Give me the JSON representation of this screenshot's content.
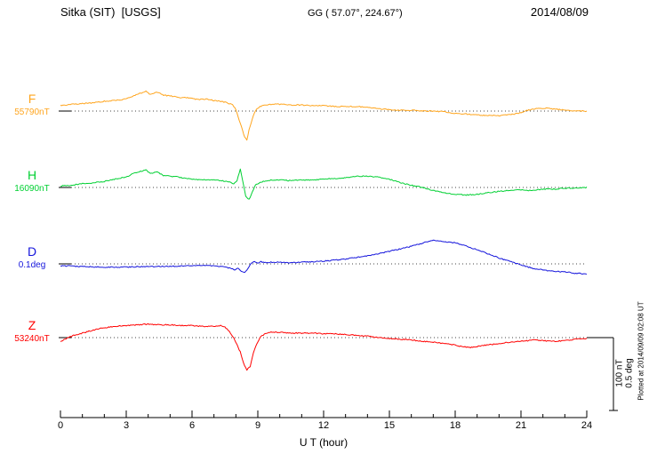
{
  "header": {
    "station": "Sitka (SIT)  [USGS]",
    "coordinates": "GG ( 57.07°, 224.67°)",
    "date": "2014/08/09"
  },
  "scale_bar": {
    "labels": [
      "100 nT",
      "0.5 deg"
    ]
  },
  "footer": {
    "plotted_at": "Plotted at 2014/09/09 02:08 UT"
  },
  "chart_data": {
    "type": "line",
    "title": "Sitka (SIT) [USGS] magnetogram, 2014/08/09",
    "xlabel": "U T (hour)",
    "x_range": [
      0,
      24
    ],
    "x_ticks": [
      0,
      3,
      6,
      9,
      12,
      15,
      18,
      21,
      24
    ],
    "scale_bar": {
      "amount_nT": 100,
      "amount_deg": 0.5
    },
    "series": [
      {
        "name": "F",
        "baseline_label": "55790nT",
        "unit": "nT",
        "color": "#ffa51e",
        "points": [
          [
            0,
            7
          ],
          [
            0.5,
            9
          ],
          [
            1,
            10
          ],
          [
            1.5,
            11
          ],
          [
            2,
            13
          ],
          [
            2.5,
            14
          ],
          [
            3,
            16
          ],
          [
            3.3,
            20
          ],
          [
            3.6,
            23
          ],
          [
            3.9,
            26
          ],
          [
            4.1,
            22
          ],
          [
            4.4,
            25
          ],
          [
            4.7,
            21
          ],
          [
            5,
            20
          ],
          [
            5.5,
            18
          ],
          [
            6,
            17
          ],
          [
            6.3,
            15
          ],
          [
            6.6,
            16
          ],
          [
            7,
            14
          ],
          [
            7.3,
            13
          ],
          [
            7.6,
            11
          ],
          [
            7.85,
            8
          ],
          [
            8,
            2
          ],
          [
            8.1,
            -8
          ],
          [
            8.25,
            -20
          ],
          [
            8.4,
            -35
          ],
          [
            8.5,
            -38
          ],
          [
            8.6,
            -25
          ],
          [
            8.75,
            -10
          ],
          [
            8.9,
            1
          ],
          [
            9.1,
            6
          ],
          [
            9.4,
            8
          ],
          [
            9.7,
            9
          ],
          [
            10,
            9
          ],
          [
            10.5,
            8
          ],
          [
            11,
            8
          ],
          [
            11.5,
            7
          ],
          [
            12,
            7
          ],
          [
            12.5,
            6
          ],
          [
            13,
            6
          ],
          [
            13.5,
            6
          ],
          [
            14,
            5
          ],
          [
            14.5,
            3
          ],
          [
            15,
            2
          ],
          [
            15.5,
            1
          ],
          [
            16,
            1
          ],
          [
            16.5,
            0
          ],
          [
            17,
            0
          ],
          [
            17.5,
            -1
          ],
          [
            18,
            -3
          ],
          [
            18.5,
            -4
          ],
          [
            19,
            -5
          ],
          [
            19.5,
            -6
          ],
          [
            20,
            -6
          ],
          [
            20.3,
            -5
          ],
          [
            20.7,
            -4
          ],
          [
            21,
            -2
          ],
          [
            21.3,
            1
          ],
          [
            21.7,
            3
          ],
          [
            22,
            4
          ],
          [
            22.4,
            3
          ],
          [
            22.8,
            2
          ],
          [
            23.2,
            1
          ],
          [
            23.6,
            0
          ],
          [
            24,
            0
          ]
        ]
      },
      {
        "name": "H",
        "baseline_label": "16090nT",
        "unit": "nT",
        "color": "#00d032",
        "points": [
          [
            0,
            2
          ],
          [
            0.5,
            3
          ],
          [
            1,
            5
          ],
          [
            1.5,
            6
          ],
          [
            2,
            8
          ],
          [
            2.5,
            11
          ],
          [
            3,
            14
          ],
          [
            3.3,
            18
          ],
          [
            3.6,
            21
          ],
          [
            3.9,
            23
          ],
          [
            4.1,
            18
          ],
          [
            4.4,
            21
          ],
          [
            4.7,
            16
          ],
          [
            5,
            15
          ],
          [
            5.3,
            14
          ],
          [
            5.7,
            12
          ],
          [
            6,
            11
          ],
          [
            6.5,
            10
          ],
          [
            7,
            10
          ],
          [
            7.3,
            9
          ],
          [
            7.6,
            8
          ],
          [
            7.9,
            5
          ],
          [
            8.05,
            9
          ],
          [
            8.2,
            24
          ],
          [
            8.3,
            10
          ],
          [
            8.45,
            -12
          ],
          [
            8.6,
            -16
          ],
          [
            8.75,
            -6
          ],
          [
            8.9,
            3
          ],
          [
            9.1,
            7
          ],
          [
            9.4,
            9
          ],
          [
            9.7,
            10
          ],
          [
            10,
            10
          ],
          [
            10.5,
            9
          ],
          [
            11,
            10
          ],
          [
            11.5,
            10
          ],
          [
            12,
            11
          ],
          [
            12.5,
            12
          ],
          [
            13,
            13
          ],
          [
            13.3,
            14
          ],
          [
            13.7,
            15
          ],
          [
            14,
            15
          ],
          [
            14.3,
            14
          ],
          [
            14.7,
            13
          ],
          [
            15,
            11
          ],
          [
            15.3,
            8
          ],
          [
            15.7,
            5
          ],
          [
            16,
            3
          ],
          [
            16.5,
            0
          ],
          [
            17,
            -4
          ],
          [
            17.5,
            -7
          ],
          [
            18,
            -9
          ],
          [
            18.5,
            -10
          ],
          [
            19,
            -9
          ],
          [
            19.5,
            -7
          ],
          [
            20,
            -5
          ],
          [
            20.5,
            -4
          ],
          [
            21,
            -3
          ],
          [
            21.4,
            -4
          ],
          [
            21.8,
            -3
          ],
          [
            22.2,
            -2
          ],
          [
            22.6,
            -2
          ],
          [
            23,
            -1
          ],
          [
            23.5,
            -1
          ],
          [
            24,
            0
          ]
        ]
      },
      {
        "name": "D",
        "baseline_label": "0.1deg",
        "unit": "deg",
        "color": "#1414dc",
        "points": [
          [
            0,
            -0.012
          ],
          [
            0.5,
            -0.015
          ],
          [
            1,
            -0.018
          ],
          [
            1.5,
            -0.02
          ],
          [
            2,
            -0.022
          ],
          [
            2.5,
            -0.022
          ],
          [
            3,
            -0.021
          ],
          [
            3.5,
            -0.019
          ],
          [
            4,
            -0.018
          ],
          [
            4.5,
            -0.017
          ],
          [
            5,
            -0.016
          ],
          [
            5.5,
            -0.014
          ],
          [
            6,
            -0.012
          ],
          [
            6.5,
            -0.01
          ],
          [
            7,
            -0.012
          ],
          [
            7.3,
            -0.016
          ],
          [
            7.6,
            -0.024
          ],
          [
            7.8,
            -0.032
          ],
          [
            7.95,
            -0.042
          ],
          [
            8.1,
            -0.03
          ],
          [
            8.25,
            -0.048
          ],
          [
            8.4,
            -0.056
          ],
          [
            8.55,
            -0.032
          ],
          [
            8.7,
            0.004
          ],
          [
            8.85,
            0.018
          ],
          [
            9,
            0.002
          ],
          [
            9.15,
            0.014
          ],
          [
            9.35,
            0.008
          ],
          [
            9.6,
            0.011
          ],
          [
            10,
            0.01
          ],
          [
            10.5,
            0.008
          ],
          [
            11,
            0.01
          ],
          [
            11.5,
            0.014
          ],
          [
            12,
            0.018
          ],
          [
            12.5,
            0.024
          ],
          [
            13,
            0.032
          ],
          [
            13.5,
            0.042
          ],
          [
            14,
            0.054
          ],
          [
            14.5,
            0.068
          ],
          [
            15,
            0.083
          ],
          [
            15.5,
            0.099
          ],
          [
            16,
            0.116
          ],
          [
            16.5,
            0.136
          ],
          [
            16.8,
            0.15
          ],
          [
            17,
            0.158
          ],
          [
            17.2,
            0.153
          ],
          [
            17.5,
            0.148
          ],
          [
            18,
            0.139
          ],
          [
            18.5,
            0.118
          ],
          [
            19,
            0.093
          ],
          [
            19.5,
            0.066
          ],
          [
            20,
            0.039
          ],
          [
            20.5,
            0.016
          ],
          [
            21,
            -0.006
          ],
          [
            21.5,
            -0.028
          ],
          [
            22,
            -0.041
          ],
          [
            22.5,
            -0.048
          ],
          [
            23,
            -0.054
          ],
          [
            23.5,
            -0.062
          ],
          [
            24,
            -0.068
          ]
        ]
      },
      {
        "name": "Z",
        "baseline_label": "53240nT",
        "unit": "nT",
        "color": "#ff0000",
        "points": [
          [
            0,
            -5
          ],
          [
            0.3,
            -1
          ],
          [
            0.6,
            3
          ],
          [
            1,
            6
          ],
          [
            1.5,
            10
          ],
          [
            2,
            13
          ],
          [
            2.5,
            15
          ],
          [
            3,
            16
          ],
          [
            3.5,
            17
          ],
          [
            4,
            18
          ],
          [
            4.5,
            17
          ],
          [
            5,
            17
          ],
          [
            5.5,
            16
          ],
          [
            6,
            16
          ],
          [
            6.5,
            15
          ],
          [
            7,
            15
          ],
          [
            7.3,
            16
          ],
          [
            7.5,
            14
          ],
          [
            7.7,
            8
          ],
          [
            7.9,
            0
          ],
          [
            8.05,
            -9
          ],
          [
            8.2,
            -19
          ],
          [
            8.35,
            -34
          ],
          [
            8.5,
            -43
          ],
          [
            8.65,
            -38
          ],
          [
            8.8,
            -20
          ],
          [
            8.95,
            -8
          ],
          [
            9.1,
            0
          ],
          [
            9.3,
            5
          ],
          [
            9.6,
            7
          ],
          [
            10,
            7
          ],
          [
            10.5,
            6
          ],
          [
            11,
            6
          ],
          [
            11.5,
            6
          ],
          [
            12,
            5
          ],
          [
            12.5,
            5
          ],
          [
            13,
            4
          ],
          [
            13.5,
            3
          ],
          [
            14,
            2
          ],
          [
            14.5,
            0
          ],
          [
            15,
            -1
          ],
          [
            15.5,
            -2
          ],
          [
            16,
            -3
          ],
          [
            16.5,
            -5
          ],
          [
            17,
            -6
          ],
          [
            17.5,
            -8
          ],
          [
            18,
            -10
          ],
          [
            18.3,
            -12
          ],
          [
            18.7,
            -13
          ],
          [
            19,
            -12
          ],
          [
            19.3,
            -10
          ],
          [
            19.7,
            -9
          ],
          [
            20,
            -8
          ],
          [
            20.5,
            -6
          ],
          [
            21,
            -5
          ],
          [
            21.3,
            -4
          ],
          [
            21.7,
            -3
          ],
          [
            22,
            -4
          ],
          [
            22.5,
            -5
          ],
          [
            23,
            -4
          ],
          [
            23.5,
            -2
          ],
          [
            24,
            -1
          ]
        ]
      }
    ]
  }
}
